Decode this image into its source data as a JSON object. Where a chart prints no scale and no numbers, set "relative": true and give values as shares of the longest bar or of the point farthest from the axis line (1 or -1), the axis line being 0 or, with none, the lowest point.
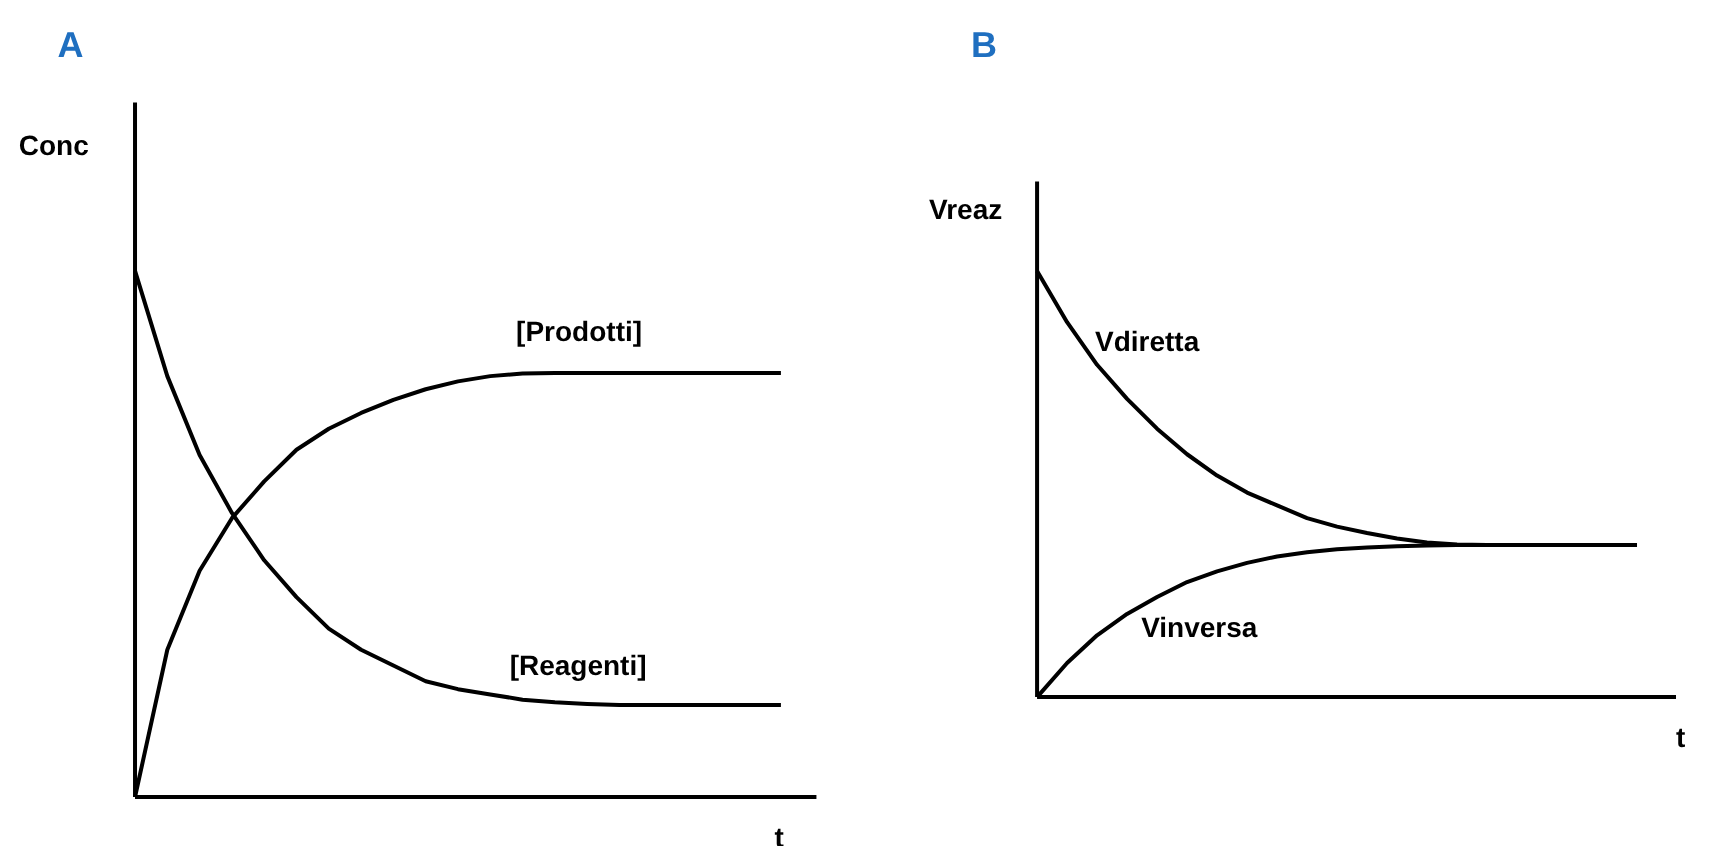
{
  "chart_data": [
    {
      "type": "line",
      "title": "A",
      "ylabel": "Conc",
      "xlabel": "t",
      "relative": true,
      "marker": "none",
      "line_style": "solid",
      "categories": [
        null,
        null,
        null,
        null,
        null,
        null,
        null,
        null,
        null,
        null,
        null,
        null,
        null,
        null,
        null,
        null,
        null,
        null,
        null,
        null,
        null
      ],
      "series": [
        {
          "name": "[Prodotti]",
          "color": "#000000",
          "values": [
            0,
            0.28,
            0.43,
            0.53,
            0.6,
            0.66,
            0.7,
            0.73,
            0.755,
            0.775,
            0.79,
            0.8,
            0.805,
            0.806,
            0.806,
            0.806,
            0.806,
            0.806,
            0.806,
            0.806,
            0.806
          ]
        },
        {
          "name": "[Reagenti]",
          "color": "#000000",
          "values": [
            1,
            0.8,
            0.65,
            0.54,
            0.45,
            0.38,
            0.32,
            0.28,
            0.25,
            0.22,
            0.205,
            0.195,
            0.185,
            0.18,
            0.177,
            0.175,
            0.175,
            0.175,
            0.175,
            0.175,
            0.175
          ]
        }
      ]
    },
    {
      "type": "line",
      "title": "B",
      "ylabel": "Vreaz",
      "xlabel": "t",
      "relative": true,
      "marker": "none",
      "line_style": "solid",
      "categories": [
        null,
        null,
        null,
        null,
        null,
        null,
        null,
        null,
        null,
        null,
        null,
        null,
        null,
        null,
        null,
        null,
        null,
        null,
        null,
        null,
        null
      ],
      "series": [
        {
          "name": "Vdiretta",
          "color": "#000000",
          "values": [
            1,
            0.88,
            0.78,
            0.7,
            0.63,
            0.57,
            0.52,
            0.48,
            0.45,
            0.42,
            0.4,
            0.385,
            0.372,
            0.363,
            0.358,
            0.357,
            0.357,
            0.357,
            0.357,
            0.357,
            0.357
          ]
        },
        {
          "name": "Vinversa",
          "color": "#000000",
          "values": [
            0,
            0.08,
            0.145,
            0.195,
            0.235,
            0.27,
            0.295,
            0.315,
            0.33,
            0.34,
            0.347,
            0.351,
            0.354,
            0.356,
            0.357,
            0.357,
            0.357,
            0.357,
            0.357,
            0.357,
            0.357
          ]
        }
      ]
    }
  ]
}
